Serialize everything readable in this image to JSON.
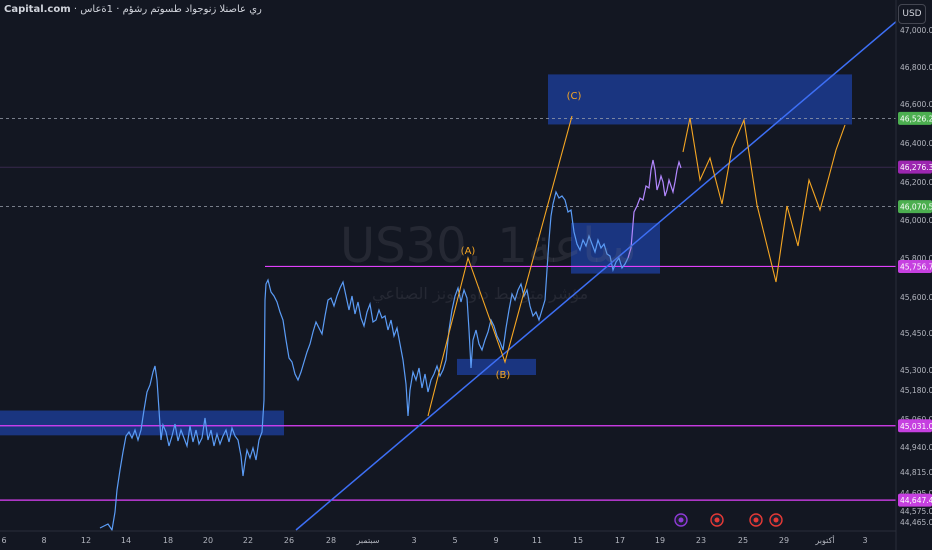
{
  "header": {
    "brand": "Capital.com",
    "subtitle": "· ري عاصنلا زنوجواد طسوتم رشؤم · 1ةعاس",
    "currency_button": "USD"
  },
  "watermark": {
    "symbol": "US30, 1ساعة",
    "name": "مؤشر متوسط داو جونز الصناعي"
  },
  "chart_data": {
    "type": "line",
    "yaxis": {
      "range": [
        44465,
        47000
      ],
      "tick_labels": [
        "47,000.0",
        "46,800.0",
        "46,600.0",
        "46,400.0",
        "46,200.0",
        "46,000.0",
        "45,800.0",
        "45,600.0",
        "45,450.0",
        "45,300.0",
        "45,180.0",
        "45,060.0",
        "44,940.0",
        "44,815.0",
        "44,695.0",
        "44,575.0",
        "44,465.0"
      ],
      "tick_values": [
        47000,
        46800,
        46600,
        46400,
        46200,
        46000,
        45800,
        45600,
        45450,
        45300,
        45180,
        45060,
        44940,
        44815,
        44695,
        44575,
        44465
      ]
    },
    "xaxis": {
      "tick_labels": [
        "6",
        "8",
        "12",
        "14",
        "18",
        "20",
        "22",
        "26",
        "28",
        "سبتمبر",
        "3",
        "5",
        "9",
        "11",
        "15",
        "17",
        "19",
        "23",
        "25",
        "29",
        "أكتوبر",
        "3"
      ]
    },
    "price_levels": [
      {
        "value": 46526.2,
        "label": "46,526.2",
        "color": "#4caf50",
        "style": "dashed"
      },
      {
        "value": 46276.3,
        "label": "46,276.3",
        "color": "#9c27b0",
        "style": "solid-thin"
      },
      {
        "value": 46070.5,
        "label": "46,070.5",
        "color": "#4caf50",
        "style": "dashed"
      },
      {
        "value": 45756.7,
        "label": "45,756.7",
        "color": "#e040fb",
        "style": "solid"
      },
      {
        "value": 45031.0,
        "label": "45,031.0",
        "color": "#e040fb",
        "style": "solid"
      },
      {
        "value": 44647.4,
        "label": "44,647.4",
        "color": "#e040fb",
        "style": "solid"
      }
    ],
    "wave_labels": [
      "(A)",
      "(B)",
      "(C)"
    ],
    "colors": {
      "background": "#131722",
      "price_line": "#5b9cf6",
      "price_line_late": "#b388ff",
      "zone_fill": "#1e40a0",
      "trendline": "#3d6ff5",
      "wave": "#f5a623",
      "level": "#e040fb"
    }
  }
}
